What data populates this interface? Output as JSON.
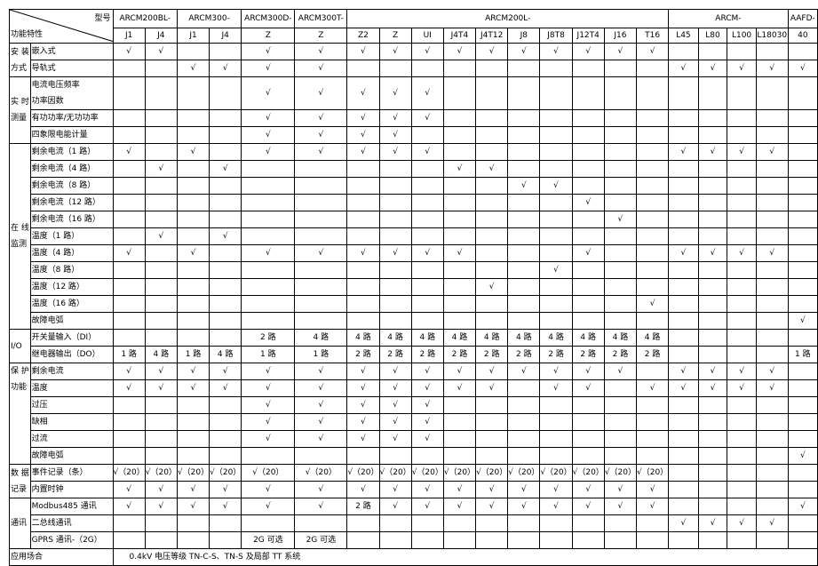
{
  "header": {
    "model_label": "型号",
    "feature_label": "功能特性",
    "groups": [
      {
        "label": "ARCM200BL-",
        "span": 2
      },
      {
        "label": "ARCM300-",
        "span": 2
      },
      {
        "label": "ARCM300D-",
        "span": 1
      },
      {
        "label": "ARCM300T-",
        "span": 1
      },
      {
        "label": "ARCM200L-",
        "span": 10
      },
      {
        "label": "ARCM-",
        "span": 4
      },
      {
        "label": "AAFD-",
        "span": 1
      }
    ],
    "models": [
      "J1",
      "J4",
      "J1",
      "J4",
      "Z",
      "Z",
      "Z2",
      "Z",
      "UI",
      "J4T4",
      "J4T12",
      "J8",
      "J8T8",
      "J12T4",
      "J16",
      "T16",
      "L45",
      "L80",
      "L100",
      "L18030",
      "40"
    ]
  },
  "sections": [
    {
      "label": "安 装\n方式",
      "align": "middle",
      "rows": [
        {
          "feature": "嵌入式",
          "values": [
            "√",
            "√",
            "",
            "",
            "√",
            "√",
            "√",
            "√",
            "√",
            "√",
            "√",
            "√",
            "√",
            "√",
            "√",
            "√",
            "",
            "",
            "",
            "",
            ""
          ]
        },
        {
          "feature": "导轨式",
          "values": [
            "",
            "",
            "√",
            "√",
            "√",
            "√",
            "",
            "",
            "",
            "",
            "",
            "",
            "",
            "",
            "",
            "",
            "√",
            "√",
            "√",
            "√",
            "√"
          ]
        }
      ]
    },
    {
      "label": "实 时\n测量",
      "align": "middle",
      "rows": [
        {
          "feature": "电流电压频率\n功率因数",
          "tall": true,
          "values": [
            "",
            "",
            "",
            "",
            "√",
            "√",
            "√",
            "√",
            "√",
            "",
            "",
            "",
            "",
            "",
            "",
            "",
            "",
            "",
            "",
            "",
            ""
          ]
        },
        {
          "feature": "有功功率/无功功率",
          "values": [
            "",
            "",
            "",
            "",
            "√",
            "√",
            "√",
            "√",
            "√",
            "",
            "",
            "",
            "",
            "",
            "",
            "",
            "",
            "",
            "",
            "",
            ""
          ]
        },
        {
          "feature": "四象限电能计量",
          "values": [
            "",
            "",
            "",
            "",
            "√",
            "√",
            "√",
            "√",
            "",
            "",
            "",
            "",
            "",
            "",
            "",
            "",
            "",
            "",
            "",
            "",
            ""
          ]
        }
      ]
    },
    {
      "label": "在 线\n监测",
      "align": "middle",
      "rows": [
        {
          "feature": "剩余电流（1 路）",
          "values": [
            "√",
            "",
            "√",
            "",
            "√",
            "√",
            "√",
            "√",
            "√",
            "",
            "",
            "",
            "",
            "",
            "",
            "",
            "√",
            "√",
            "√",
            "√",
            ""
          ]
        },
        {
          "feature": "剩余电流（4 路）",
          "values": [
            "",
            "√",
            "",
            "√",
            "",
            "",
            "",
            "",
            "",
            "√",
            "√",
            "",
            "",
            "",
            "",
            "",
            "",
            "",
            "",
            "",
            ""
          ]
        },
        {
          "feature": "剩余电流（8 路）",
          "values": [
            "",
            "",
            "",
            "",
            "",
            "",
            "",
            "",
            "",
            "",
            "",
            "√",
            "√",
            "",
            "",
            "",
            "",
            "",
            "",
            "",
            ""
          ]
        },
        {
          "feature": "剩余电流（12 路）",
          "values": [
            "",
            "",
            "",
            "",
            "",
            "",
            "",
            "",
            "",
            "",
            "",
            "",
            "",
            "√",
            "",
            "",
            "",
            "",
            "",
            "",
            ""
          ]
        },
        {
          "feature": "剩余电流（16 路）",
          "values": [
            "",
            "",
            "",
            "",
            "",
            "",
            "",
            "",
            "",
            "",
            "",
            "",
            "",
            "",
            "√",
            "",
            "",
            "",
            "",
            "",
            ""
          ]
        },
        {
          "feature": "温度（1 路）",
          "values": [
            "",
            "√",
            "",
            "√",
            "",
            "",
            "",
            "",
            "",
            "",
            "",
            "",
            "",
            "",
            "",
            "",
            "",
            "",
            "",
            "",
            ""
          ]
        },
        {
          "feature": "温度（4 路）",
          "values": [
            "√",
            "",
            "√",
            "",
            "√",
            "√",
            "√",
            "√",
            "√",
            "√",
            "",
            "",
            "",
            "√",
            "",
            "",
            "√",
            "√",
            "√",
            "√",
            ""
          ]
        },
        {
          "feature": "温度（8 路）",
          "values": [
            "",
            "",
            "",
            "",
            "",
            "",
            "",
            "",
            "",
            "",
            "",
            "",
            "√",
            "",
            "",
            "",
            "",
            "",
            "",
            "",
            ""
          ]
        },
        {
          "feature": "温度（12 路）",
          "values": [
            "",
            "",
            "",
            "",
            "",
            "",
            "",
            "",
            "",
            "",
            "√",
            "",
            "",
            "",
            "",
            "",
            "",
            "",
            "",
            "",
            ""
          ]
        },
        {
          "feature": "温度（16 路）",
          "values": [
            "",
            "",
            "",
            "",
            "",
            "",
            "",
            "",
            "",
            "",
            "",
            "",
            "",
            "",
            "",
            "√",
            "",
            "",
            "",
            "",
            ""
          ]
        },
        {
          "feature": "故障电弧",
          "values": [
            "",
            "",
            "",
            "",
            "",
            "",
            "",
            "",
            "",
            "",
            "",
            "",
            "",
            "",
            "",
            "",
            "",
            "",
            "",
            "",
            "√"
          ]
        }
      ]
    },
    {
      "label": "I/O",
      "align": "middle",
      "rows": [
        {
          "feature": "开关量输入（DI）",
          "values": [
            "",
            "",
            "",
            "",
            "2 路",
            "4 路",
            "4 路",
            "4 路",
            "4 路",
            "4 路",
            "4 路",
            "4 路",
            "4 路",
            "4 路",
            "4 路",
            "4 路",
            "",
            "",
            "",
            "",
            ""
          ]
        },
        {
          "feature": "继电器输出（DO）",
          "values": [
            "1 路",
            "4 路",
            "1 路",
            "4 路",
            "1 路",
            "1 路",
            "2 路",
            "2 路",
            "2 路",
            "2 路",
            "2 路",
            "2 路",
            "2 路",
            "2 路",
            "2 路",
            "2 路",
            "",
            "",
            "",
            "",
            "1 路"
          ]
        }
      ]
    },
    {
      "label": "保 护\n功能",
      "align": "top",
      "rows": [
        {
          "feature": "剩余电流",
          "values": [
            "√",
            "√",
            "√",
            "√",
            "√",
            "√",
            "√",
            "√",
            "√",
            "√",
            "√",
            "√",
            "√",
            "√",
            "√",
            "",
            "√",
            "√",
            "√",
            "√",
            ""
          ]
        },
        {
          "feature": "温度",
          "values": [
            "√",
            "√",
            "√",
            "√",
            "√",
            "√",
            "√",
            "√",
            "√",
            "√",
            "√",
            "",
            "√",
            "√",
            "",
            "√",
            "√",
            "√",
            "√",
            "√",
            ""
          ]
        },
        {
          "feature": "过压",
          "values": [
            "",
            "",
            "",
            "",
            "√",
            "√",
            "√",
            "√",
            "√",
            "",
            "",
            "",
            "",
            "",
            "",
            "",
            "",
            "",
            "",
            "",
            ""
          ]
        },
        {
          "feature": "缺相",
          "values": [
            "",
            "",
            "",
            "",
            "√",
            "√",
            "√",
            "√",
            "√",
            "",
            "",
            "",
            "",
            "",
            "",
            "",
            "",
            "",
            "",
            "",
            ""
          ]
        },
        {
          "feature": "过流",
          "values": [
            "",
            "",
            "",
            "",
            "√",
            "√",
            "√",
            "√",
            "√",
            "",
            "",
            "",
            "",
            "",
            "",
            "",
            "",
            "",
            "",
            "",
            ""
          ]
        },
        {
          "feature": "故障电弧",
          "values": [
            "",
            "",
            "",
            "",
            "",
            "",
            "",
            "",
            "",
            "",
            "",
            "",
            "",
            "",
            "",
            "",
            "",
            "",
            "",
            "",
            "√"
          ]
        }
      ]
    },
    {
      "label": "数 据\n记录",
      "align": "middle",
      "rows": [
        {
          "feature": "事件记录（条）",
          "values": [
            "√（20）",
            "√（20）",
            "√（20）",
            "√（20）",
            "√（20）",
            "√（20）",
            "√（20）",
            "√（20）",
            "√（20）",
            "√（20）",
            "√（20）",
            "√（20）",
            "√（20）",
            "√（20）",
            "√（20）",
            "√（20）",
            "",
            "",
            "",
            "",
            ""
          ]
        },
        {
          "feature": "内置时钟",
          "values": [
            "√",
            "√",
            "√",
            "√",
            "√",
            "√",
            "√",
            "√",
            "√",
            "√",
            "√",
            "√",
            "√",
            "√",
            "√",
            "√",
            "",
            "",
            "",
            "",
            ""
          ]
        }
      ]
    },
    {
      "label": "通讯",
      "align": "middle",
      "rows": [
        {
          "feature": "Modbus485 通讯",
          "values": [
            "√",
            "√",
            "√",
            "√",
            "√",
            "√",
            "2 路",
            "√",
            "√",
            "√",
            "√",
            "√",
            "√",
            "√",
            "√",
            "√",
            "",
            "",
            "",
            "",
            "√"
          ]
        },
        {
          "feature": "二总线通讯",
          "values": [
            "",
            "",
            "",
            "",
            "",
            "",
            "",
            "",
            "",
            "",
            "",
            "",
            "",
            "",
            "",
            "",
            "√",
            "√",
            "√",
            "√",
            ""
          ]
        },
        {
          "feature": "GPRS 通讯-（2G）",
          "values": [
            "",
            "",
            "",
            "",
            "2G 可选",
            "2G 可选",
            "",
            "",
            "",
            "",
            "",
            "",
            "",
            "",
            "",
            "",
            "",
            "",
            "",
            "",
            ""
          ]
        }
      ]
    }
  ],
  "application": {
    "label": "应用场合",
    "value": "0.4kV 电压等级 TN-C-S、TN-S 及局部 TT 系统"
  }
}
